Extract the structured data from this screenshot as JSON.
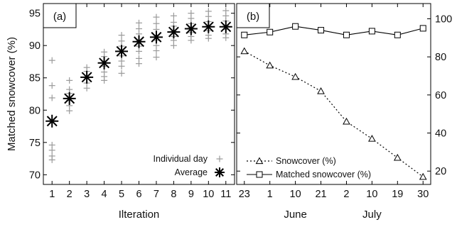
{
  "chart_data": [
    {
      "panel_label": "(a)",
      "type": "scatter",
      "xlabel": "Ilteration",
      "ylabel": "Matched snowcover (%)",
      "xlim": [
        0.5,
        11.5
      ],
      "ylim": [
        68.5,
        96.5
      ],
      "x_ticks": [
        1,
        2,
        3,
        4,
        5,
        6,
        7,
        8,
        9,
        10,
        11
      ],
      "y_ticks": [
        70,
        75,
        80,
        85,
        90,
        95
      ],
      "grid": false,
      "legend_position": "bottom-right",
      "series": [
        {
          "name": "Individual day",
          "marker": "plus",
          "color": "#9a9a9a",
          "points": [
            [
              1,
              87.7
            ],
            [
              1,
              83.8
            ],
            [
              1,
              81.9
            ],
            [
              1,
              78.4
            ],
            [
              1,
              74.6
            ],
            [
              1,
              73.8
            ],
            [
              1,
              72.9
            ],
            [
              1,
              72.3
            ],
            [
              2,
              84.6
            ],
            [
              2,
              83.2
            ],
            [
              2,
              82.6
            ],
            [
              2,
              81.5
            ],
            [
              2,
              80.7
            ],
            [
              2,
              79.9
            ],
            [
              3,
              86.6
            ],
            [
              3,
              86.0
            ],
            [
              3,
              85.0
            ],
            [
              3,
              84.2
            ],
            [
              3,
              83.4
            ],
            [
              4,
              89.0
            ],
            [
              4,
              88.3
            ],
            [
              4,
              87.6
            ],
            [
              4,
              86.8
            ],
            [
              4,
              85.9
            ],
            [
              4,
              85.2
            ],
            [
              4,
              84.6
            ],
            [
              5,
              91.6
            ],
            [
              5,
              90.7
            ],
            [
              5,
              89.9
            ],
            [
              5,
              89.1
            ],
            [
              5,
              88.4
            ],
            [
              5,
              87.6
            ],
            [
              5,
              86.8
            ],
            [
              5,
              85.7
            ],
            [
              6,
              93.5
            ],
            [
              6,
              92.6
            ],
            [
              6,
              91.8
            ],
            [
              6,
              90.7
            ],
            [
              6,
              89.9
            ],
            [
              6,
              89.1
            ],
            [
              6,
              88.0
            ],
            [
              6,
              87.2
            ],
            [
              7,
              94.4
            ],
            [
              7,
              93.4
            ],
            [
              7,
              92.5
            ],
            [
              7,
              91.6
            ],
            [
              7,
              90.8
            ],
            [
              7,
              90.0
            ],
            [
              7,
              89.2
            ],
            [
              7,
              88.2
            ],
            [
              8,
              94.6
            ],
            [
              8,
              93.6
            ],
            [
              8,
              93.0
            ],
            [
              8,
              92.2
            ],
            [
              8,
              91.4
            ],
            [
              8,
              90.8
            ],
            [
              8,
              90.0
            ],
            [
              9,
              95.0
            ],
            [
              9,
              94.2
            ],
            [
              9,
              93.4
            ],
            [
              9,
              92.8
            ],
            [
              9,
              92.0
            ],
            [
              9,
              91.4
            ],
            [
              9,
              90.8
            ],
            [
              10,
              95.3
            ],
            [
              10,
              94.5
            ],
            [
              10,
              93.7
            ],
            [
              10,
              93.0
            ],
            [
              10,
              92.3
            ],
            [
              10,
              91.6
            ],
            [
              10,
              91.1
            ],
            [
              11,
              95.4
            ],
            [
              11,
              94.6
            ],
            [
              11,
              93.8
            ],
            [
              11,
              93.1
            ],
            [
              11,
              92.5
            ],
            [
              11,
              91.8
            ],
            [
              11,
              91.2
            ]
          ]
        },
        {
          "name": "Average",
          "marker": "asterisk",
          "color": "#000000",
          "points": [
            [
              1,
              78.3
            ],
            [
              2,
              81.8
            ],
            [
              3,
              85.1
            ],
            [
              4,
              87.3
            ],
            [
              5,
              89.1
            ],
            [
              6,
              90.6
            ],
            [
              7,
              91.3
            ],
            [
              8,
              92.1
            ],
            [
              9,
              92.6
            ],
            [
              10,
              92.9
            ],
            [
              11,
              92.9
            ]
          ]
        }
      ]
    },
    {
      "panel_label": "(b)",
      "type": "line",
      "x_tick_labels": [
        "23",
        "1",
        "10",
        "21",
        "2",
        "10",
        "19",
        "30"
      ],
      "month_labels": [
        "June",
        "July"
      ],
      "xlim": [
        -0.3,
        7.3
      ],
      "ylim": [
        13,
        108
      ],
      "y_ticks": [
        20,
        40,
        60,
        80,
        100
      ],
      "y_axis_side": "right",
      "grid": false,
      "legend_position": "bottom-left",
      "series": [
        {
          "name": "Snowcover (%)",
          "marker": "triangle",
          "line_style": "dotted",
          "color": "#000000",
          "values": [
            83,
            75.5,
            69.5,
            62,
            46,
            37,
            27,
            17
          ]
        },
        {
          "name": "Matched snowcover (%)",
          "marker": "square",
          "line_style": "solid",
          "color": "#000000",
          "values": [
            91.5,
            93,
            96,
            94,
            91.5,
            93.5,
            91.5,
            95
          ]
        }
      ]
    }
  ]
}
